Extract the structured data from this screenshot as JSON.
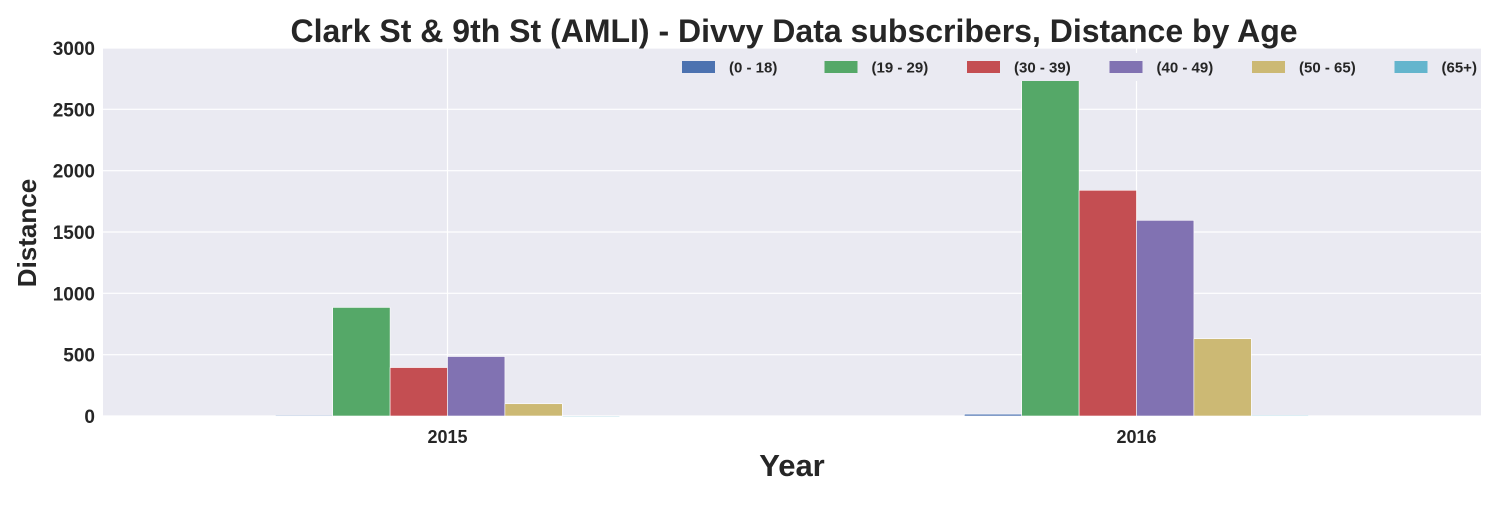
{
  "chart_data": {
    "type": "bar",
    "title": "Clark St & 9th St (AMLI) - Divvy Data subscribers, Distance by Age",
    "xlabel": "Year",
    "ylabel": "Distance",
    "categories": [
      "2015",
      "2016"
    ],
    "ylim": [
      0,
      3000
    ],
    "yticks": [
      "0",
      "500",
      "1000",
      "1500",
      "2000",
      "2500",
      "3000"
    ],
    "grid": true,
    "legend_position": "top-right",
    "series": [
      {
        "name": "(0 - 18)",
        "color": "#4C72B0",
        "values": [
          5,
          15
        ]
      },
      {
        "name": "(19 - 29)",
        "color": "#55A868",
        "values": [
          885,
          2735
        ]
      },
      {
        "name": "(30 - 39)",
        "color": "#C44E52",
        "values": [
          395,
          1840
        ]
      },
      {
        "name": "(40 - 49)",
        "color": "#8172B2",
        "values": [
          485,
          1595
        ]
      },
      {
        "name": "(50 - 65)",
        "color": "#CCB974",
        "values": [
          100,
          630
        ]
      },
      {
        "name": "(65+)",
        "color": "#64B5CD",
        "values": [
          0,
          5
        ]
      }
    ]
  },
  "style": {
    "plot_background": "#EAEAF2",
    "grid_color": "#FFFFFF",
    "text_color": "#262626"
  }
}
